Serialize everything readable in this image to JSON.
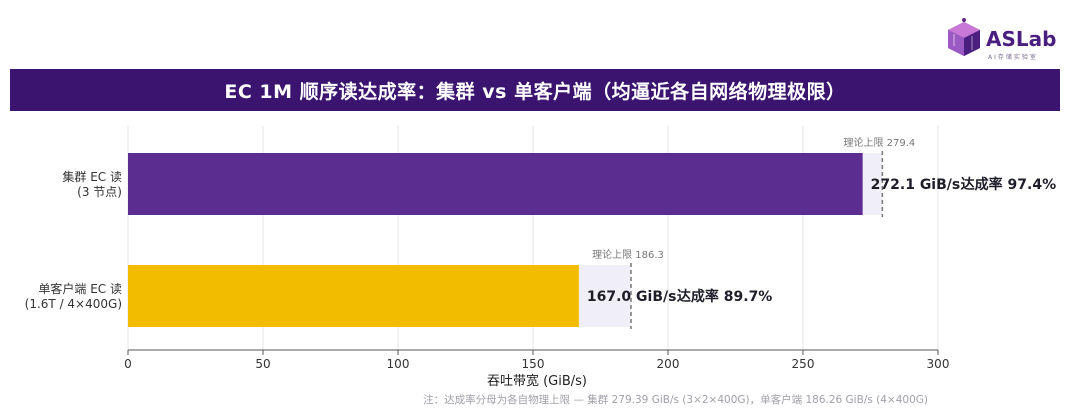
{
  "logo": {
    "text": "ASLab",
    "subtitle": "AI存储实验室",
    "accent": "#5b2a86"
  },
  "chart_data": {
    "type": "bar",
    "orientation": "horizontal",
    "title": "EC 1M 顺序读达成率：集群 vs 单客户端（均逼近各自网络物理极限）",
    "xlabel": "吞吐带宽 (GiB/s)",
    "xlim": [
      0,
      300
    ],
    "xticks": [
      0,
      50,
      100,
      150,
      200,
      250,
      300
    ],
    "grid": "x",
    "bars": [
      {
        "label_lines": [
          "集群 EC 读",
          "(3 节点)"
        ],
        "value": 272.1,
        "limit": 279.4,
        "limit_label": "理论上限 279.4",
        "value_text": "272.1 GiB/s",
        "rate_text": "达成率 97.4%",
        "color": "#5c2d91"
      },
      {
        "label_lines": [
          "单客户端 EC 读",
          "(1.6T / 4×400G)"
        ],
        "value": 167.0,
        "limit": 186.3,
        "limit_label": "理论上限 186.3",
        "value_text": "167.0 GiB/s",
        "rate_text": "达成率 89.7%",
        "color": "#f2bc00"
      }
    ],
    "limit_fill": "#f0eef7",
    "footnote": "注：达成率分母为各自物理上限 — 集群 279.39 GiB/s (3×2×400G)，单客户端 186.26 GiB/s (4×400G)"
  }
}
